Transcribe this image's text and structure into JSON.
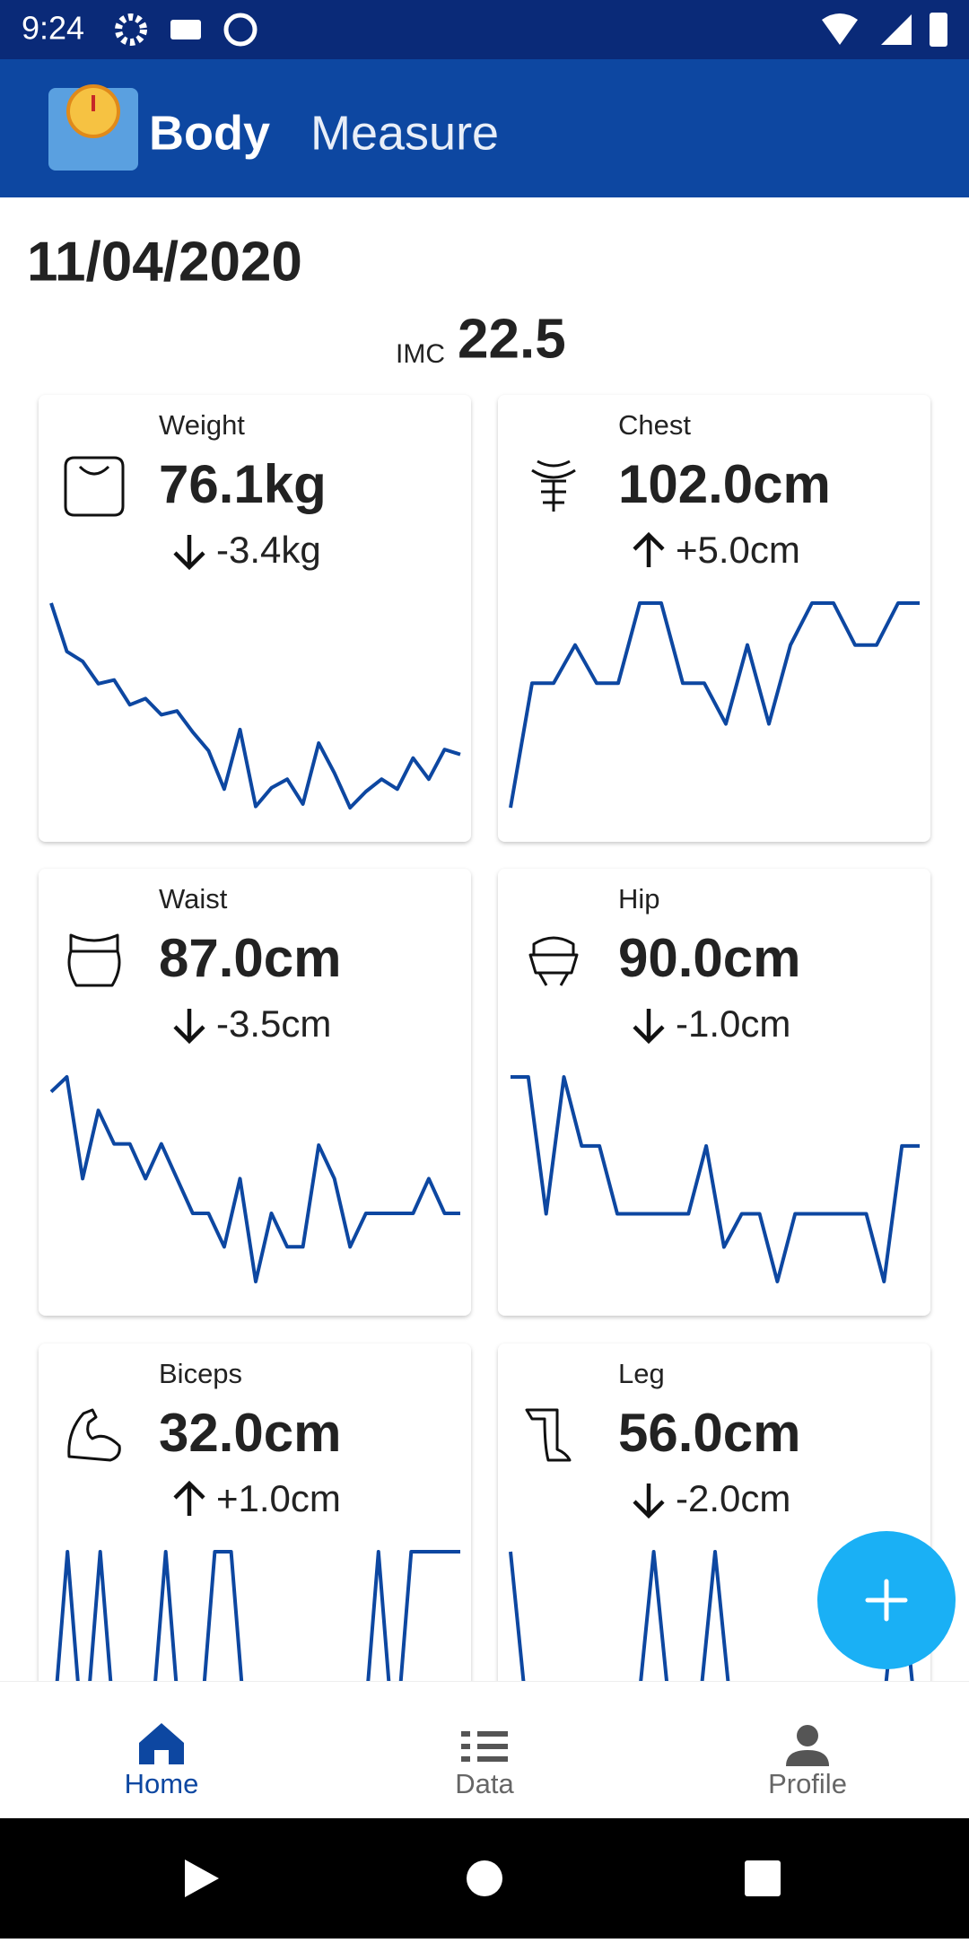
{
  "status": {
    "time": "9:24"
  },
  "app": {
    "title_bold": "Body",
    "title_light": "Measure"
  },
  "date": "11/04/2020",
  "imc": {
    "label": "IMC",
    "value": "22.5"
  },
  "cards": [
    {
      "label": "Weight",
      "value": "76.1kg",
      "change": "-3.4kg",
      "trend": [
        17.2,
        13.3,
        12.5,
        10.7,
        11.0,
        9.0,
        9.5,
        8.2,
        8.5,
        6.8,
        5.3,
        2.2,
        7.0,
        0.8,
        2.3,
        3.0,
        1.0,
        5.9,
        3.5,
        0.7,
        2.0,
        3.0,
        2.2,
        4.7,
        3.0,
        5.4,
        5.0
      ]
    },
    {
      "label": "Chest",
      "value": "102.0cm",
      "change": "+5.0cm",
      "trend": [
        0.6,
        10.7,
        10.7,
        13.8,
        10.7,
        10.7,
        17.2,
        17.2,
        10.7,
        10.7,
        7.4,
        13.8,
        7.4,
        13.8,
        17.2,
        17.2,
        13.8,
        13.8,
        17.2,
        17.2
      ]
    },
    {
      "label": "Waist",
      "value": "87.0cm",
      "change": "-3.5cm",
      "trend": [
        17.5,
        18.7,
        10.5,
        16.0,
        13.3,
        13.3,
        10.5,
        13.3,
        10.5,
        7.7,
        7.7,
        5.0,
        10.5,
        2.2,
        7.7,
        5.0,
        5.0,
        13.2,
        10.5,
        5.0,
        7.7,
        7.7,
        7.7,
        7.7,
        10.5,
        7.7,
        7.7
      ]
    },
    {
      "label": "Hip",
      "value": "90.0cm",
      "change": "-1.0cm",
      "trend": [
        18.8,
        18.8,
        7.7,
        18.8,
        13.2,
        13.2,
        7.7,
        7.7,
        7.7,
        7.7,
        7.7,
        13.2,
        5.0,
        7.7,
        7.7,
        2.2,
        7.7,
        7.7,
        7.7,
        7.7,
        7.7,
        2.2,
        13.2,
        13.2
      ]
    },
    {
      "label": "Biceps",
      "value": "32.0cm",
      "change": "+1.0cm",
      "trend": [
        0,
        10,
        0,
        10,
        0,
        0,
        0,
        10,
        0,
        0,
        10,
        10,
        0,
        0,
        0,
        0,
        0,
        0,
        0,
        0,
        10,
        0,
        10,
        10,
        10,
        10
      ]
    },
    {
      "label": "Leg",
      "value": "56.0cm",
      "change": "-2.0cm",
      "trend": [
        10,
        0,
        0,
        0,
        0,
        0,
        0,
        10,
        0,
        0,
        10,
        0,
        0,
        0,
        0,
        0,
        0,
        0,
        0,
        10,
        0
      ]
    }
  ],
  "nav": [
    {
      "label": "Home"
    },
    {
      "label": "Data"
    },
    {
      "label": "Profile"
    }
  ]
}
